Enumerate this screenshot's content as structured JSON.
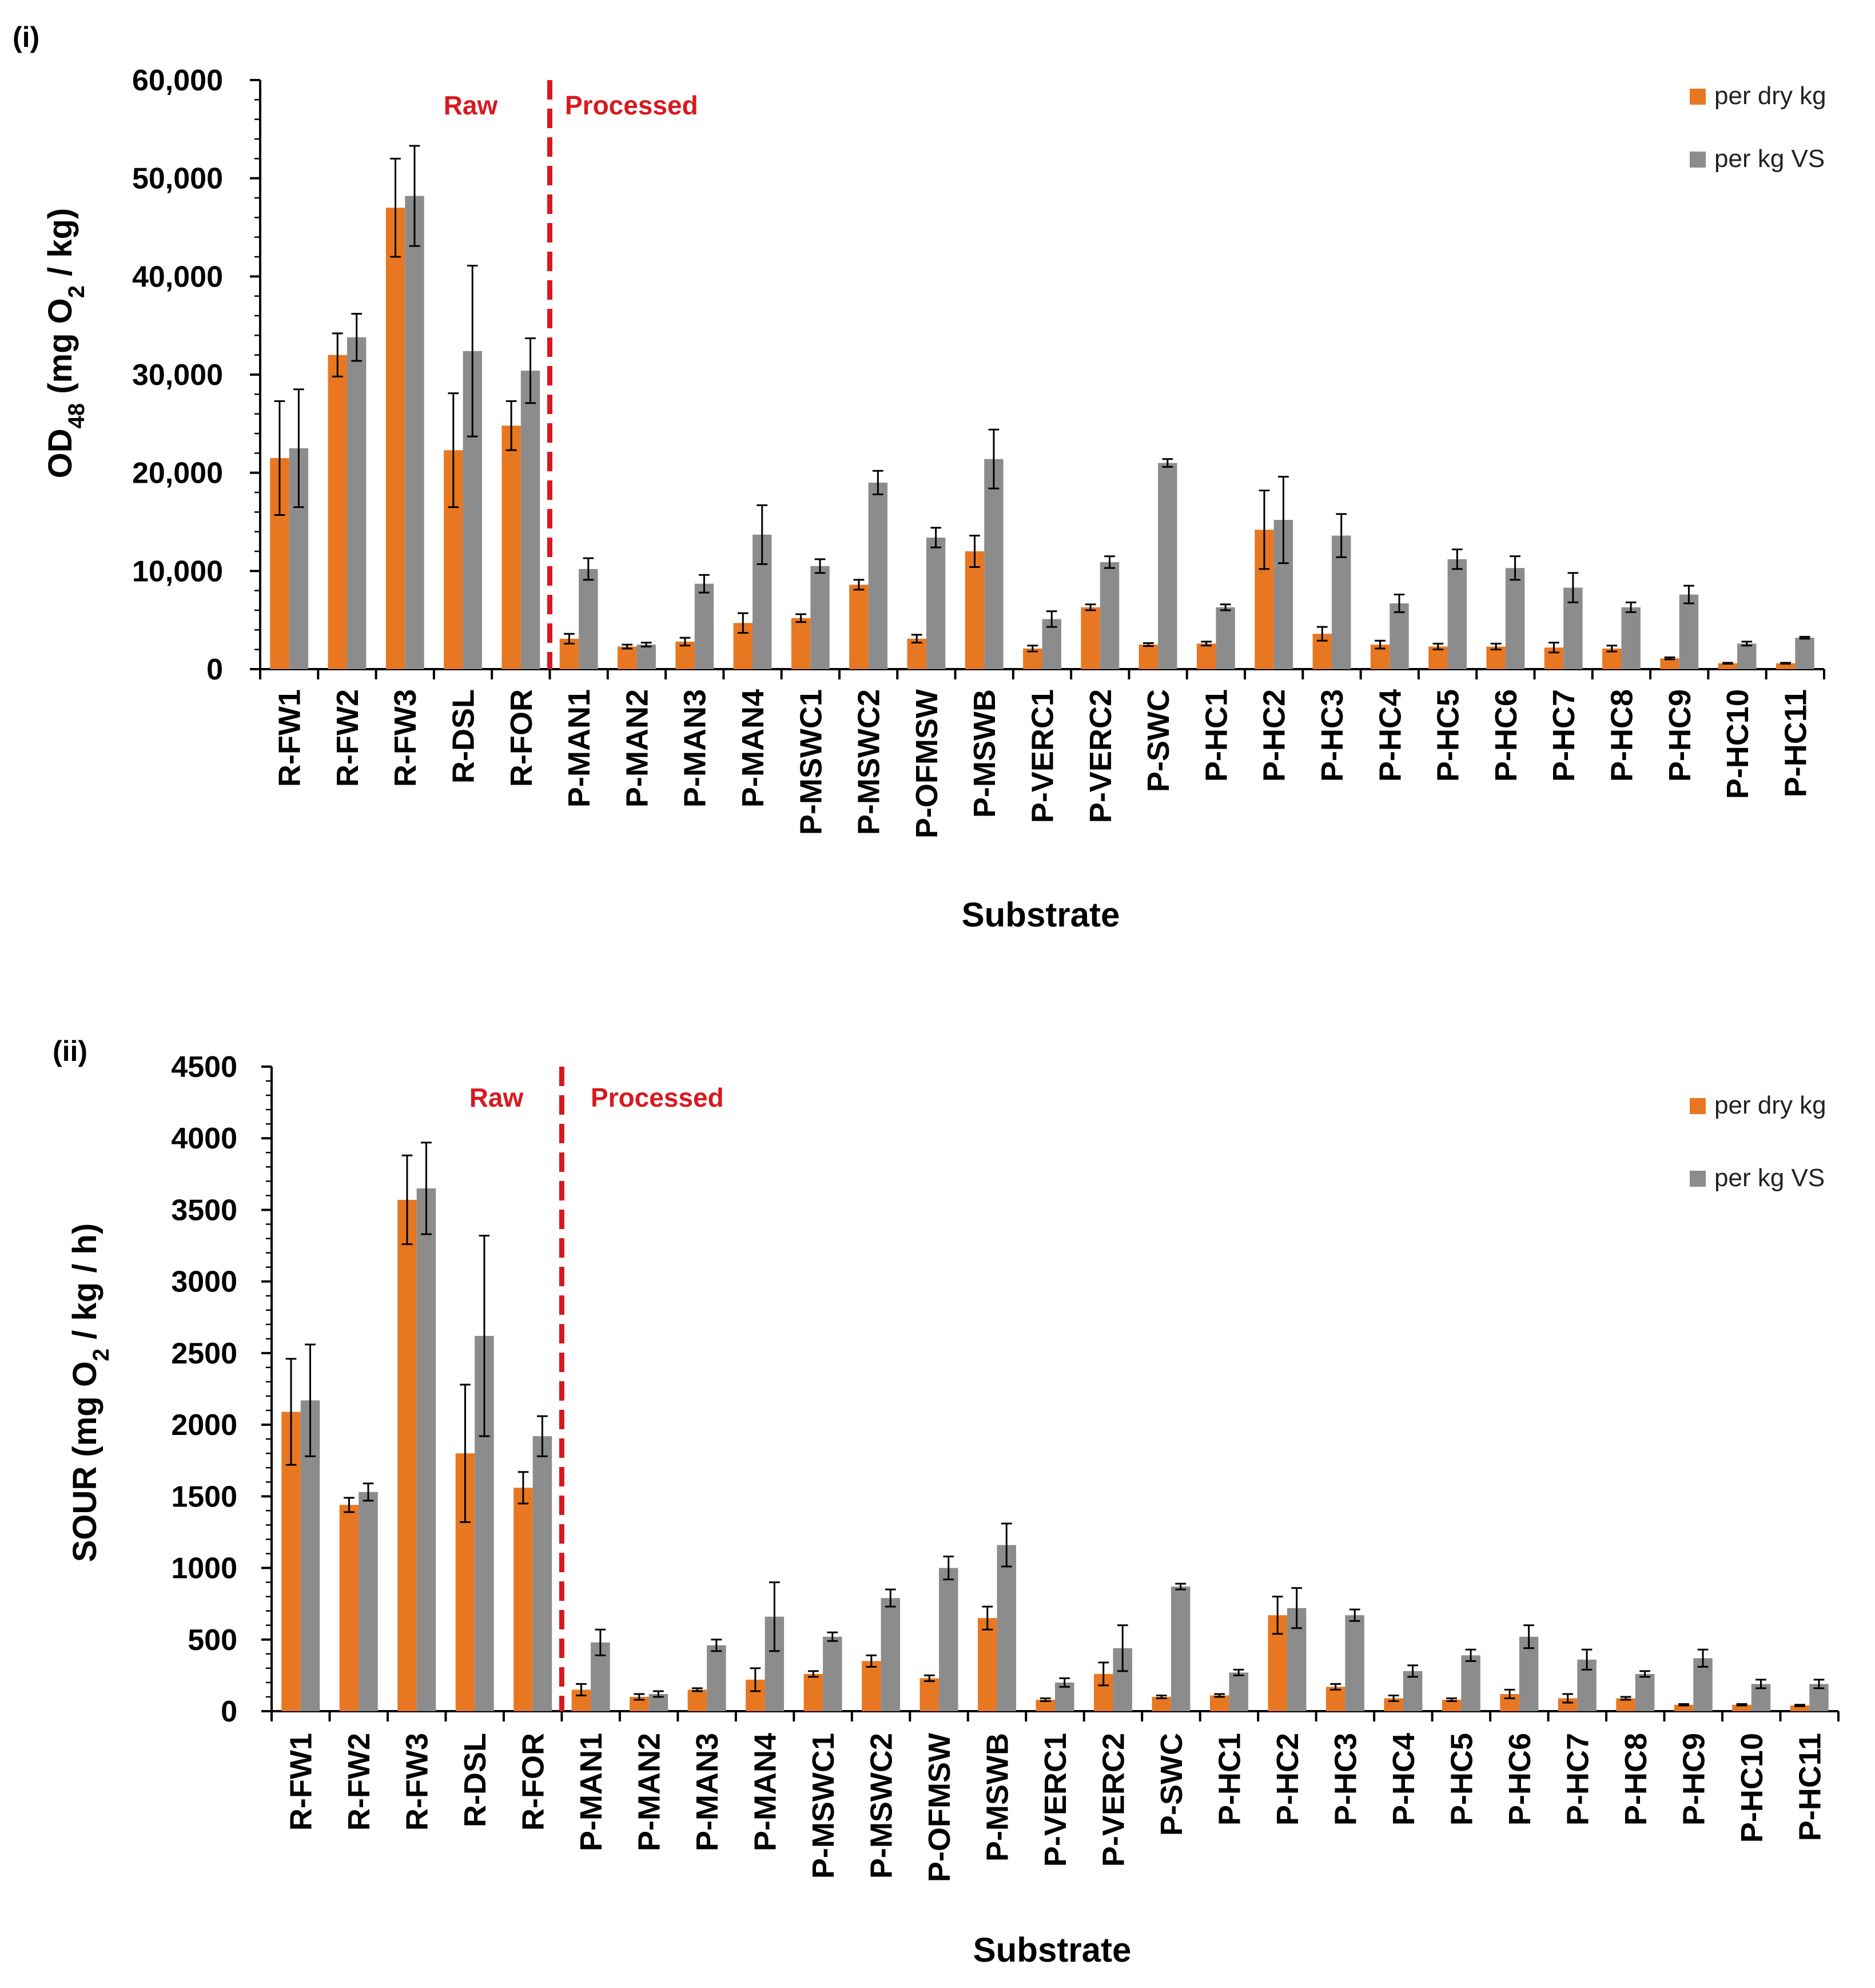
{
  "chart_data": [
    {
      "panel_label": "(i)",
      "type": "bar",
      "ylabel": {
        "main": "OD",
        "sub": "48",
        "rest_pre": " (mg O",
        "sub2": "2",
        "rest_post": " / kg)"
      },
      "xlabel": "Substrate",
      "ylim": [
        0,
        60000
      ],
      "yticks": [
        0,
        10000,
        20000,
        30000,
        40000,
        50000,
        60000
      ],
      "ytick_labels": [
        "0",
        "10,000",
        "20,000",
        "30,000",
        "40,000",
        "50,000",
        "60,000"
      ],
      "categories": [
        "R-FW1",
        "R-FW2",
        "R-FW3",
        "R-DSL",
        "R-FOR",
        "P-MAN1",
        "P-MAN2",
        "P-MAN3",
        "P-MAN4",
        "P-MSWC1",
        "P-MSWC2",
        "P-OFMSW",
        "P-MSWB",
        "P-VERC1",
        "P-VERC2",
        "P-SWC",
        "P-HC1",
        "P-HC2",
        "P-HC3",
        "P-HC4",
        "P-HC5",
        "P-HC6",
        "P-HC7",
        "P-HC8",
        "P-HC9",
        "P-HC10",
        "P-HC11"
      ],
      "series": [
        {
          "name": "per dry kg",
          "color": "#E87722",
          "values": [
            21500,
            32000,
            47000,
            22300,
            24800,
            3100,
            2300,
            2800,
            4700,
            5200,
            8600,
            3100,
            12000,
            2100,
            6300,
            2500,
            2600,
            14200,
            3600,
            2500,
            2300,
            2300,
            2200,
            2100,
            1100,
            600,
            600
          ],
          "errors": [
            5800,
            2200,
            5000,
            5800,
            2500,
            500,
            200,
            400,
            1000,
            400,
            500,
            400,
            1600,
            300,
            300,
            150,
            200,
            4000,
            700,
            400,
            300,
            300,
            500,
            300,
            100,
            50,
            50
          ]
        },
        {
          "name": "per kg VS",
          "color": "#8C8C8C",
          "values": [
            22500,
            33800,
            48200,
            32400,
            30400,
            10200,
            2500,
            8700,
            13700,
            10500,
            19000,
            13400,
            21400,
            5100,
            10900,
            21000,
            6300,
            15200,
            13600,
            6700,
            11200,
            10300,
            8300,
            6300,
            7600,
            2600,
            3200
          ],
          "errors": [
            6000,
            2400,
            5100,
            8700,
            3300,
            1100,
            200,
            900,
            3000,
            700,
            1200,
            1000,
            3000,
            800,
            600,
            400,
            300,
            4400,
            2200,
            900,
            1000,
            1200,
            1500,
            500,
            900,
            200,
            100
          ]
        }
      ],
      "annotations": {
        "raw": "Raw",
        "processed": "Processed"
      },
      "annotation_color": "#D71920",
      "divider_after_index": 4,
      "legend_position": "top-right",
      "grid": false
    },
    {
      "panel_label": "(ii)",
      "type": "bar",
      "ylabel": {
        "main": "SOUR (mg O",
        "sub": "2",
        "rest": " / kg / h)"
      },
      "xlabel": "Substrate",
      "ylim": [
        0,
        4500
      ],
      "yticks": [
        0,
        500,
        1000,
        1500,
        2000,
        2500,
        3000,
        3500,
        4000,
        4500
      ],
      "ytick_labels": [
        "0",
        "500",
        "1000",
        "1500",
        "2000",
        "2500",
        "3000",
        "3500",
        "4000",
        "4500"
      ],
      "categories": [
        "R-FW1",
        "R-FW2",
        "R-FW3",
        "R-DSL",
        "R-FOR",
        "P-MAN1",
        "P-MAN2",
        "P-MAN3",
        "P-MAN4",
        "P-MSWC1",
        "P-MSWC2",
        "P-OFMSW",
        "P-MSWB",
        "P-VERC1",
        "P-VERC2",
        "P-SWC",
        "P-HC1",
        "P-HC2",
        "P-HC3",
        "P-HC4",
        "P-HC5",
        "P-HC6",
        "P-HC7",
        "P-HC8",
        "P-HC9",
        "P-HC10",
        "P-HC11"
      ],
      "series": [
        {
          "name": "per dry kg",
          "color": "#E87722",
          "values": [
            2090,
            1440,
            3570,
            1800,
            1560,
            150,
            100,
            150,
            220,
            260,
            350,
            230,
            650,
            80,
            260,
            100,
            110,
            670,
            170,
            90,
            80,
            120,
            90,
            90,
            45,
            45,
            40
          ],
          "errors": [
            370,
            50,
            310,
            480,
            110,
            40,
            20,
            10,
            80,
            20,
            40,
            20,
            80,
            10,
            80,
            10,
            10,
            130,
            20,
            20,
            10,
            30,
            30,
            10,
            5,
            5,
            5
          ]
        },
        {
          "name": "per kg VS",
          "color": "#8C8C8C",
          "values": [
            2170,
            1530,
            3650,
            2620,
            1920,
            480,
            120,
            460,
            660,
            520,
            790,
            1000,
            1160,
            200,
            440,
            870,
            270,
            720,
            670,
            280,
            390,
            520,
            360,
            260,
            370,
            190,
            190
          ],
          "errors": [
            390,
            60,
            320,
            700,
            140,
            90,
            20,
            40,
            240,
            30,
            60,
            80,
            150,
            30,
            160,
            20,
            20,
            140,
            40,
            40,
            40,
            80,
            70,
            20,
            60,
            30,
            30
          ]
        }
      ],
      "annotations": {
        "raw": "Raw",
        "processed": "Processed"
      },
      "annotation_color": "#D71920",
      "divider_after_index": 4,
      "legend_position": "top-right",
      "grid": false
    }
  ]
}
